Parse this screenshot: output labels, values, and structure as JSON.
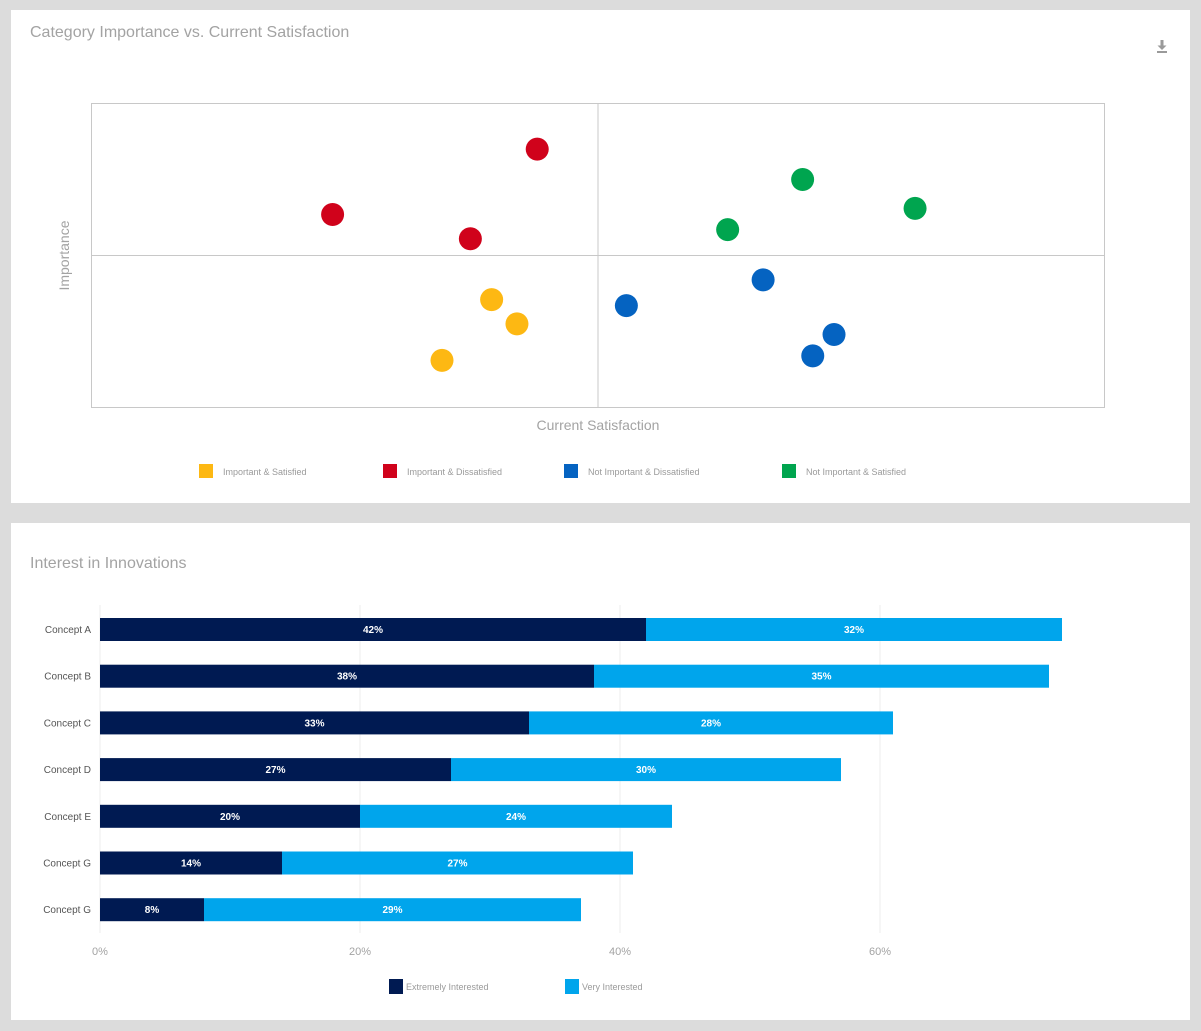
{
  "scatter_panel": {
    "title": "Category Importance vs. Current Satisfaction",
    "download_icon": "download-icon"
  },
  "bar_panel": {
    "title": "Interest in Innovations"
  },
  "chart_data": [
    {
      "type": "scatter",
      "title": "Category Importance vs. Current Satisfaction",
      "xlabel": "Current Satisfaction",
      "ylabel": "Importance",
      "xlim": [
        0,
        100
      ],
      "ylim": [
        0,
        100
      ],
      "quadrant_dividers": {
        "x": 50,
        "y": 50
      },
      "grid": false,
      "legend_position": "bottom",
      "series": [
        {
          "name": "Important & Satisfied",
          "color": "#fdb813",
          "points": [
            {
              "x": 39.5,
              "y": 35.5
            },
            {
              "x": 42,
              "y": 27.5
            },
            {
              "x": 34.6,
              "y": 15.5
            }
          ]
        },
        {
          "name": "Important & Dissatisfied",
          "color": "#d0021b",
          "points": [
            {
              "x": 44,
              "y": 85
            },
            {
              "x": 23.8,
              "y": 63.5
            },
            {
              "x": 37.4,
              "y": 55.5
            }
          ]
        },
        {
          "name": "Not Important & Dissatisfied",
          "color": "#0563c1",
          "points": [
            {
              "x": 52.8,
              "y": 33.5
            },
            {
              "x": 66.3,
              "y": 42
            },
            {
              "x": 73.3,
              "y": 24
            },
            {
              "x": 71.2,
              "y": 17
            }
          ]
        },
        {
          "name": "Not Important & Satisfied",
          "color": "#00a54f",
          "points": [
            {
              "x": 70.2,
              "y": 75
            },
            {
              "x": 81.3,
              "y": 65.5
            },
            {
              "x": 62.8,
              "y": 58.5
            }
          ]
        }
      ]
    },
    {
      "type": "bar",
      "orientation": "horizontal",
      "stacked": true,
      "title": "Interest in Innovations",
      "categories": [
        "Concept A",
        "Concept B",
        "Concept C",
        "Concept D",
        "Concept E",
        "Concept G",
        "Concept G"
      ],
      "series": [
        {
          "name": "Extremely Interested",
          "color": "#001a52",
          "values": [
            42,
            38,
            33,
            27,
            20,
            14,
            8
          ]
        },
        {
          "name": "Very Interested",
          "color": "#00a5ec",
          "values": [
            32,
            35,
            28,
            30,
            24,
            27,
            29
          ]
        }
      ],
      "value_suffix": "%",
      "xticks": [
        0,
        20,
        40,
        60
      ],
      "xtick_labels": [
        "0%",
        "20%",
        "40%",
        "60%"
      ],
      "xlim": [
        0,
        77.7
      ],
      "grid": true,
      "legend_position": "bottom"
    }
  ]
}
